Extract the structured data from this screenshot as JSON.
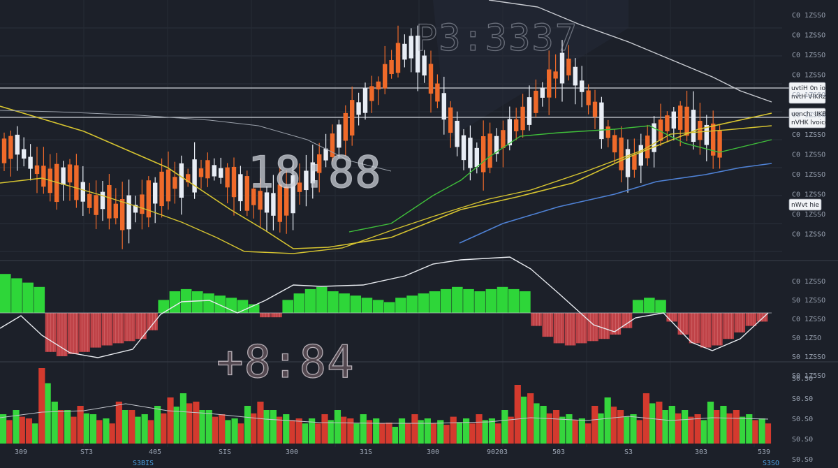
{
  "chart_data": [
    {
      "type": "candlestick",
      "title": "",
      "xlabel": "",
      "ylabel": "",
      "grid": true,
      "colors": {
        "up": "#e8edf5",
        "down": "#ef6a2a",
        "ma_yellow": "#d6c430",
        "ma_green": "#3fbf3a",
        "ma_blue": "#4f82d6",
        "ma_white": "#c9ccd2"
      },
      "candles_pattern": {
        "shape_y": [
          0.55,
          0.52,
          0.6,
          0.66,
          0.7,
          0.64,
          0.72,
          0.8,
          0.76,
          0.84,
          0.82,
          0.78,
          0.73,
          0.7,
          0.68,
          0.66,
          0.63,
          0.65,
          0.69,
          0.74,
          0.77,
          0.79,
          0.78,
          0.72,
          0.66,
          0.58,
          0.5,
          0.42,
          0.34,
          0.28,
          0.2,
          0.12,
          0.08,
          0.18,
          0.3,
          0.42,
          0.54,
          0.58,
          0.55,
          0.5,
          0.44,
          0.38,
          0.3,
          0.22,
          0.16,
          0.24,
          0.34,
          0.44,
          0.54,
          0.62,
          0.56,
          0.48,
          0.42,
          0.4,
          0.44,
          0.48,
          0.52
        ]
      },
      "callouts": [
        {
          "text1": "uvtiH 0n io",
          "text2": "nvtH VIKRz"
        },
        {
          "text1": "uonch. IIKB.",
          "text2": "nVHK lvoice"
        },
        {
          "text1": "nWvt hie",
          "text2": ""
        }
      ],
      "price_ticks": [
        "C0 1ZSSO",
        "C0 1ZSSO",
        "C0 1Z5SO",
        "C0 1ZSSO",
        "C0 1ZSSO",
        "C0 1ZSSO",
        "C0 1ZSSO",
        "C0 1ZSSO",
        "C0 1ZSSO",
        "C0 1ZSSO",
        "C0 1ZSSO",
        "C0 1ZSSO"
      ],
      "overlay_digits": "P3:3337",
      "clock": "18:88"
    },
    {
      "type": "bar",
      "subtype": "macd-histogram",
      "values": [
        0.9,
        0.8,
        0.7,
        0.6,
        -0.9,
        -1,
        -0.95,
        -0.9,
        -0.8,
        -0.75,
        -0.7,
        -0.65,
        -0.6,
        -0.4,
        0.3,
        0.5,
        0.55,
        0.5,
        0.45,
        0.4,
        0.35,
        0.3,
        0.2,
        -0.1,
        -0.1,
        0.3,
        0.45,
        0.55,
        0.6,
        0.5,
        0.45,
        0.4,
        0.35,
        0.3,
        0.25,
        0.35,
        0.4,
        0.45,
        0.5,
        0.55,
        0.6,
        0.55,
        0.5,
        0.55,
        0.6,
        0.55,
        0.5,
        -0.3,
        -0.55,
        -0.7,
        -0.75,
        -0.7,
        -0.65,
        -0.6,
        -0.5,
        -0.35,
        0.3,
        0.35,
        0.3,
        -0.2,
        -0.5,
        -0.7,
        -0.8,
        -0.75,
        -0.6,
        -0.45,
        -0.3,
        -0.2
      ],
      "macd_ticks": [
        "C0 1ZSSO",
        "S0 1ZSSO",
        "C0 1ZSSO",
        "S0 1Z5O",
        "S0 1ZSSO",
        "S0 1Z5SO"
      ],
      "clock": "+8:84"
    },
    {
      "type": "bar",
      "subtype": "volume",
      "values": [
        0.35,
        0.4,
        0.3,
        0.9,
        0.5,
        0.4,
        0.45,
        0.35,
        0.3,
        0.5,
        0.4,
        0.35,
        0.45,
        0.55,
        0.6,
        0.5,
        0.4,
        0.35,
        0.3,
        0.45,
        0.5,
        0.4,
        0.35,
        0.3,
        0.3,
        0.35,
        0.4,
        0.3,
        0.35,
        0.3,
        0.25,
        0.3,
        0.35,
        0.3,
        0.28,
        0.32,
        0.3,
        0.35,
        0.3,
        0.4,
        0.7,
        0.6,
        0.45,
        0.4,
        0.35,
        0.3,
        0.45,
        0.55,
        0.4,
        0.35,
        0.6,
        0.5,
        0.45,
        0.4,
        0.35,
        0.5,
        0.45,
        0.4,
        0.35,
        0.3
      ],
      "up": [
        true,
        true,
        false,
        false,
        true,
        true,
        false,
        true,
        true,
        false,
        false,
        true,
        true,
        false,
        true,
        false,
        true,
        false,
        true,
        true,
        false,
        true,
        true,
        false,
        true,
        false,
        true,
        false,
        true,
        true,
        false,
        true,
        false,
        true,
        true,
        false,
        true,
        false,
        true,
        true,
        false,
        false,
        true,
        false,
        true,
        true,
        false,
        true,
        false,
        true,
        false,
        false,
        true,
        true,
        false,
        true,
        true,
        false,
        true,
        true
      ],
      "volume_ticks": [
        "S0.S0",
        "S0.S0",
        "S0.S0",
        "S0.S0",
        "S0.S0"
      ],
      "x_ticks": [
        "309",
        "ST3",
        "405",
        "SIS",
        "300",
        "31S",
        "300",
        "90203",
        "503",
        "S3",
        "303",
        "539"
      ],
      "date_left": "S3BIS",
      "date_right": "S3SO"
    }
  ]
}
